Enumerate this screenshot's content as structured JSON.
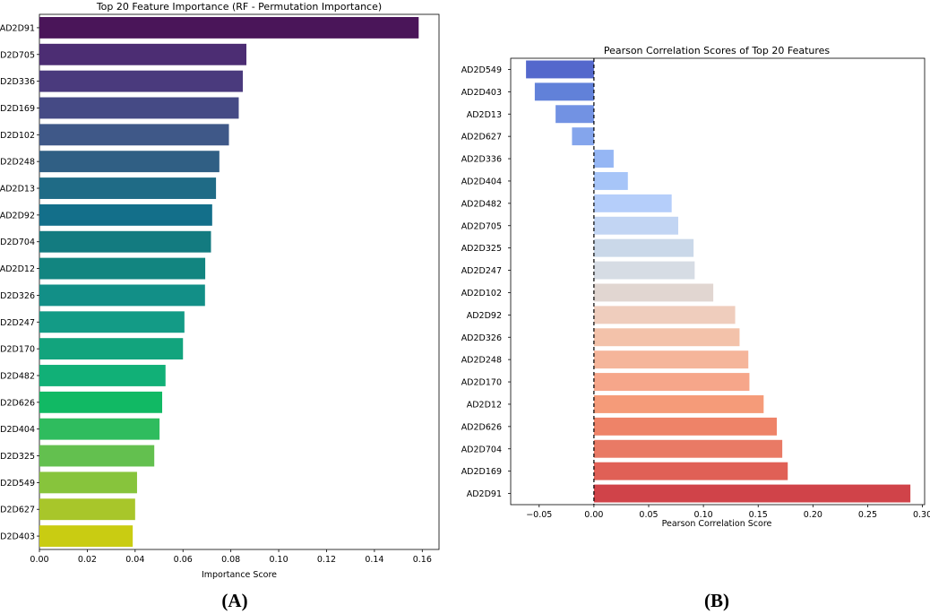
{
  "chart_data": [
    {
      "type": "bar",
      "orientation": "horizontal",
      "title": "Top 20 Feature Importance (RF - Permutation Importance)",
      "xlabel": "Importance Score",
      "ylabel": "",
      "xlim": [
        0,
        0.167
      ],
      "xticks": [
        "0.00",
        "0.02",
        "0.04",
        "0.06",
        "0.08",
        "0.10",
        "0.12",
        "0.14",
        "0.16"
      ],
      "categories": [
        "AD2D91",
        "AD2D705",
        "AD2D336",
        "AD2D169",
        "AD2D102",
        "AD2D248",
        "AD2D13",
        "AD2D92",
        "AD2D704",
        "AD2D12",
        "AD2D326",
        "AD2D247",
        "AD2D170",
        "AD2D482",
        "AD2D626",
        "AD2D404",
        "AD2D325",
        "AD2D549",
        "AD2D627",
        "AD2D403"
      ],
      "values": [
        0.1585,
        0.0865,
        0.085,
        0.0833,
        0.0792,
        0.0752,
        0.0738,
        0.0722,
        0.0717,
        0.0693,
        0.0692,
        0.0606,
        0.06,
        0.0527,
        0.0513,
        0.0502,
        0.048,
        0.0408,
        0.04,
        0.039
      ],
      "colors": [
        "#440154",
        "#472a7a",
        "#453781",
        "#404688",
        "#3b528b",
        "#33638d",
        "#2d708e",
        "#287d8e",
        "#238a8d",
        "#1f968b",
        "#20a386",
        "#29af7f",
        "#3dbc74",
        "#56c667",
        "#75d054",
        "#95d840",
        "#b8de29",
        "#dde318",
        "#e9e51a",
        "#fde725"
      ],
      "display_colors": [
        "#4a1559",
        "#4c2d73",
        "#4a3a7d",
        "#454a85",
        "#3f5888",
        "#305f84",
        "#1f6b86",
        "#136f8a",
        "#137b80",
        "#128580",
        "#128f87",
        "#139b86",
        "#12a47d",
        "#11b077",
        "#11b964",
        "#2fbc5e",
        "#63c04f",
        "#87c43c",
        "#a8c62a",
        "#c9cc12"
      ],
      "panel_label": "(A)"
    },
    {
      "type": "bar",
      "orientation": "horizontal",
      "title": "Pearson Correlation Scores of Top 20 Features",
      "xlabel": "Pearson Correlation Score",
      "ylabel": "",
      "xlim": [
        -0.076,
        0.302
      ],
      "xticks": [
        "−0.05",
        "0.00",
        "0.05",
        "0.10",
        "0.15",
        "0.20",
        "0.25",
        "0.30"
      ],
      "zero_line": true,
      "categories": [
        "AD2D549",
        "AD2D403",
        "AD2D13",
        "AD2D627",
        "AD2D336",
        "AD2D404",
        "AD2D482",
        "AD2D705",
        "AD2D325",
        "AD2D247",
        "AD2D102",
        "AD2D92",
        "AD2D326",
        "AD2D248",
        "AD2D170",
        "AD2D12",
        "AD2D626",
        "AD2D704",
        "AD2D169",
        "AD2D91"
      ],
      "values": [
        -0.062,
        -0.054,
        -0.035,
        -0.02,
        0.018,
        0.031,
        0.071,
        0.077,
        0.091,
        0.092,
        0.109,
        0.129,
        0.133,
        0.141,
        0.142,
        0.155,
        0.167,
        0.172,
        0.177,
        0.289
      ],
      "colors": [
        "#5468cc",
        "#6181d9",
        "#7292e3",
        "#84a5ec",
        "#95b6f4",
        "#a7c5f8",
        "#b5cefa",
        "#c2d5f3",
        "#cad8e9",
        "#d6dce4",
        "#e1d6d1",
        "#efcdbd",
        "#f3c2aa",
        "#f5b59a",
        "#f6a68a",
        "#f59b79",
        "#ee8368",
        "#e97a65",
        "#e06056",
        "#d04349"
      ],
      "panel_label": "(B)"
    }
  ]
}
